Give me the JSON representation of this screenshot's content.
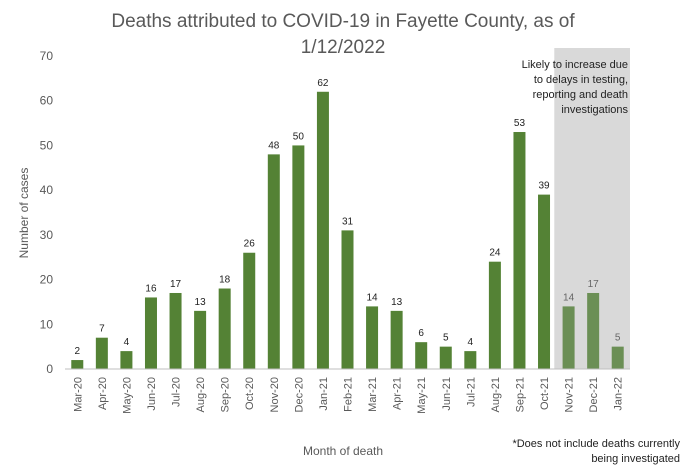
{
  "chart_data": {
    "type": "bar",
    "title_line1": "Deaths attributed to COVID-19 in Fayette County, as of",
    "title_line2": "1/12/2022",
    "xlabel": "Month of death",
    "ylabel": "Number of cases",
    "ylim": [
      0,
      70
    ],
    "yticks": [
      0,
      10,
      20,
      30,
      40,
      50,
      60,
      70
    ],
    "grid": false,
    "categories": [
      "Mar-20",
      "Apr-20",
      "May-20",
      "Jun-20",
      "Jul-20",
      "Aug-20",
      "Sep-20",
      "Oct-20",
      "Nov-20",
      "Dec-20",
      "Jan-21",
      "Feb-21",
      "Mar-21",
      "Apr-21",
      "May-21",
      "Jun-21",
      "Jul-21",
      "Aug-21",
      "Sep-21",
      "Oct-21",
      "Nov-21",
      "Dec-21",
      "Jan-22"
    ],
    "values": [
      2,
      7,
      4,
      16,
      17,
      13,
      18,
      26,
      48,
      50,
      62,
      31,
      14,
      13,
      6,
      5,
      4,
      24,
      53,
      39,
      14,
      17,
      5
    ],
    "shaded_region": {
      "categories": [
        "Nov-21",
        "Dec-21",
        "Jan-22"
      ],
      "annotation": [
        "Likely to increase due",
        "to delays in testing,",
        "reporting and death",
        "investigations"
      ]
    },
    "footnote": [
      "*Does not include deaths currently",
      "being investigated"
    ],
    "colors": {
      "bar": "#548235",
      "bar_shaded": "#6b8f55",
      "shade": "#d9d9d9",
      "axis": "#bfbfbf",
      "text": "#595959"
    }
  }
}
